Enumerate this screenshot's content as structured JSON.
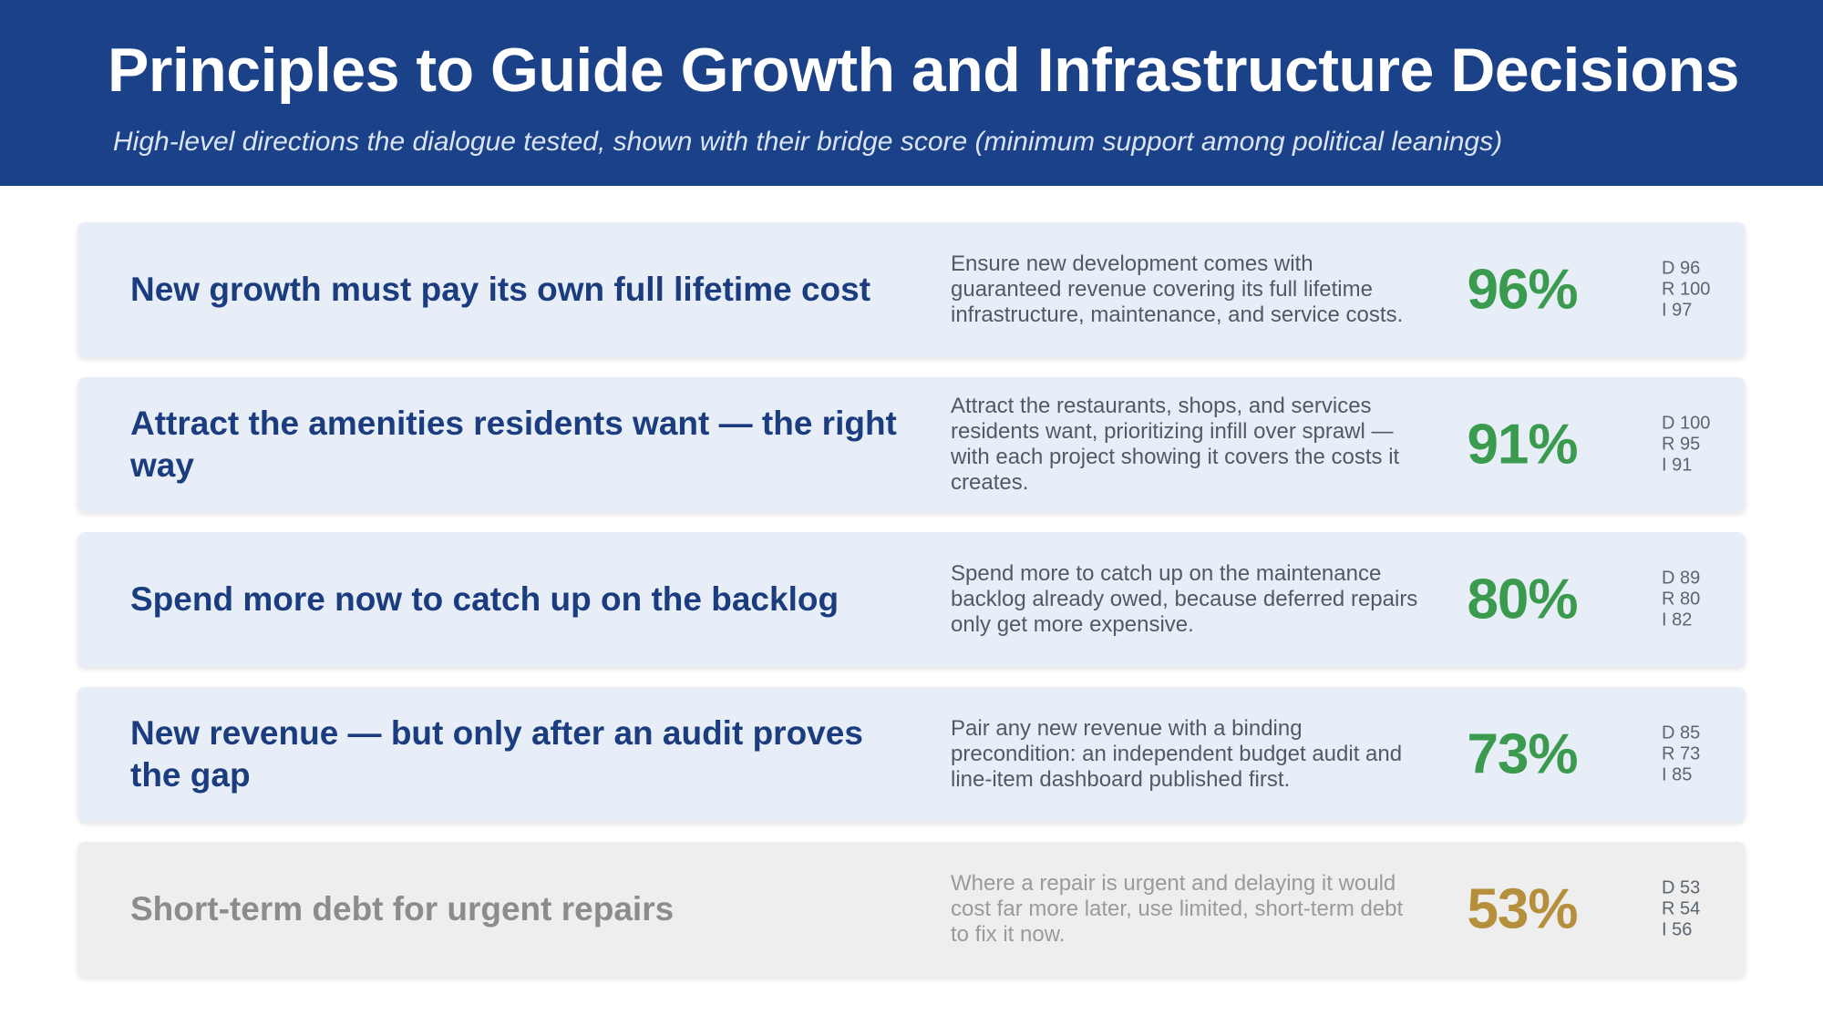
{
  "header": {
    "title": "Principles to Guide Growth and Infrastructure Decisions",
    "subtitle": "High-level directions the dialogue tested, shown with their bridge score (minimum support among political leanings)"
  },
  "colors": {
    "header_bg": "#1b4289",
    "score_green": "#3a9a4e",
    "score_amber": "#b58f3b",
    "row_bg": "#e8eef7",
    "row_bg_muted": "#eeeeee"
  },
  "principles": [
    {
      "title": "New growth must pay its own full lifetime cost",
      "description": "Ensure new development comes with guaranteed revenue covering its full lifetime infrastructure, maintenance, and service costs.",
      "score": "96%",
      "breakdown": {
        "d": "D 96",
        "r": "R 100",
        "i": "I 97"
      }
    },
    {
      "title": "Attract the amenities residents want — the right way",
      "description": "Attract the restaurants, shops, and services residents want, prioritizing infill over sprawl — with each project showing it covers the costs it creates.",
      "score": "91%",
      "breakdown": {
        "d": "D 100",
        "r": "R 95",
        "i": "I 91"
      }
    },
    {
      "title": "Spend more now to catch up on the backlog",
      "description": "Spend more to catch up on the maintenance backlog already owed, because deferred repairs only get more expensive.",
      "score": "80%",
      "breakdown": {
        "d": "D 89",
        "r": "R 80",
        "i": "I 82"
      }
    },
    {
      "title": "New revenue — but only after an audit proves the gap",
      "description": "Pair any new revenue with a binding precondition: an independent budget audit and line-item dashboard published first.",
      "score": "73%",
      "breakdown": {
        "d": "D 85",
        "r": "R 73",
        "i": "I 85"
      }
    },
    {
      "title": "Short-term debt for urgent repairs",
      "description": "Where a repair is urgent and delaying it would cost far more later, use limited, short-term debt to fix it now.",
      "score": "53%",
      "breakdown": {
        "d": "D 53",
        "r": "R 54",
        "i": "I 56"
      }
    }
  ]
}
